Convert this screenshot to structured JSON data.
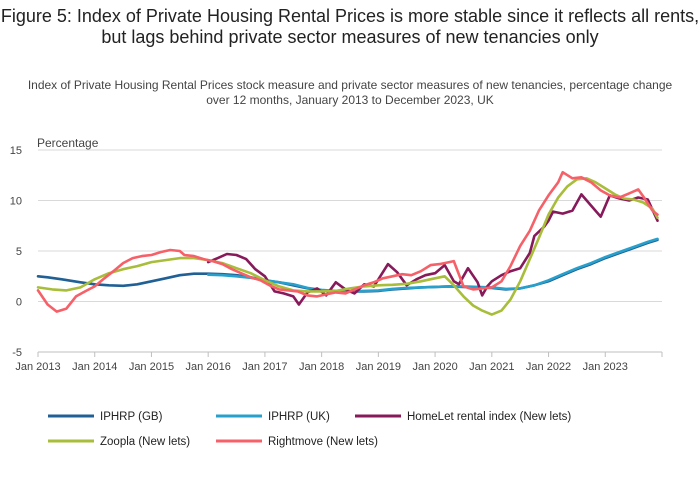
{
  "title": "Figure 5: Index of Private Housing Rental Prices is more stable since it reflects all rents, but lags behind private sector measures of new tenancies only",
  "subtitle": "Index of Private Housing Rental Prices stock measure and private sector measures of new tenancies, percentage change over 12 months, January 2013 to December 2023, UK",
  "chart_data": {
    "type": "line",
    "ylabel": "Percentage",
    "xlabel": "",
    "ylim": [
      -5,
      15
    ],
    "yticks": [
      15,
      10,
      5,
      0,
      -5
    ],
    "xticks": [
      "Jan 2013",
      "Jan 2014",
      "Jan 2015",
      "Jan 2016",
      "Jan 2017",
      "Jan 2018",
      "Jan 2019",
      "Jan 2020",
      "Jan 2021",
      "Jan 2022",
      "Jan 2023"
    ],
    "x_range": [
      2013.0,
      2024.0
    ],
    "grid": "horizontal",
    "legend_position": "bottom",
    "series": [
      {
        "name": "IPHRP (GB)",
        "color": "#206095",
        "points": [
          [
            2013.0,
            2.5
          ],
          [
            2013.17,
            2.4
          ],
          [
            2013.42,
            2.2
          ],
          [
            2013.75,
            1.9
          ],
          [
            2014.0,
            1.7
          ],
          [
            2014.25,
            1.6
          ],
          [
            2014.5,
            1.55
          ],
          [
            2014.75,
            1.7
          ],
          [
            2015.0,
            2.0
          ],
          [
            2015.25,
            2.3
          ],
          [
            2015.5,
            2.6
          ],
          [
            2015.75,
            2.75
          ],
          [
            2016.0,
            2.75
          ],
          [
            2016.25,
            2.7
          ],
          [
            2016.5,
            2.6
          ],
          [
            2016.75,
            2.4
          ],
          [
            2017.0,
            2.1
          ],
          [
            2017.25,
            1.9
          ],
          [
            2017.5,
            1.6
          ],
          [
            2017.75,
            1.3
          ],
          [
            2018.0,
            1.1
          ],
          [
            2018.25,
            1.0
          ],
          [
            2018.5,
            0.98
          ],
          [
            2018.75,
            1.0
          ],
          [
            2019.0,
            1.05
          ],
          [
            2019.25,
            1.2
          ],
          [
            2019.5,
            1.3
          ],
          [
            2019.75,
            1.4
          ],
          [
            2020.0,
            1.45
          ],
          [
            2020.25,
            1.5
          ],
          [
            2020.5,
            1.45
          ],
          [
            2020.75,
            1.4
          ],
          [
            2021.0,
            1.35
          ],
          [
            2021.25,
            1.2
          ],
          [
            2021.5,
            1.3
          ],
          [
            2021.75,
            1.6
          ],
          [
            2022.0,
            2.0
          ],
          [
            2022.25,
            2.6
          ],
          [
            2022.5,
            3.2
          ],
          [
            2022.75,
            3.7
          ],
          [
            2023.0,
            4.3
          ],
          [
            2023.25,
            4.8
          ],
          [
            2023.5,
            5.3
          ],
          [
            2023.75,
            5.8
          ],
          [
            2023.92,
            6.1
          ]
        ]
      },
      {
        "name": "IPHRP (UK)",
        "color": "#27a0cc",
        "points": [
          [
            2016.0,
            2.65
          ],
          [
            2016.25,
            2.6
          ],
          [
            2016.5,
            2.5
          ],
          [
            2016.75,
            2.35
          ],
          [
            2017.0,
            2.1
          ],
          [
            2017.25,
            1.9
          ],
          [
            2017.5,
            1.7
          ],
          [
            2017.75,
            1.35
          ],
          [
            2018.0,
            1.15
          ],
          [
            2018.25,
            1.05
          ],
          [
            2018.5,
            1.0
          ],
          [
            2018.75,
            1.05
          ],
          [
            2019.0,
            1.1
          ],
          [
            2019.25,
            1.25
          ],
          [
            2019.5,
            1.35
          ],
          [
            2019.75,
            1.4
          ],
          [
            2020.0,
            1.45
          ],
          [
            2020.25,
            1.5
          ],
          [
            2020.5,
            1.5
          ],
          [
            2020.75,
            1.45
          ],
          [
            2021.0,
            1.4
          ],
          [
            2021.25,
            1.25
          ],
          [
            2021.5,
            1.3
          ],
          [
            2021.75,
            1.6
          ],
          [
            2022.0,
            2.1
          ],
          [
            2022.25,
            2.7
          ],
          [
            2022.5,
            3.3
          ],
          [
            2022.75,
            3.8
          ],
          [
            2023.0,
            4.4
          ],
          [
            2023.25,
            4.9
          ],
          [
            2023.5,
            5.4
          ],
          [
            2023.75,
            5.9
          ],
          [
            2023.92,
            6.2
          ]
        ]
      },
      {
        "name": "HomeLet rental index (New lets)",
        "color": "#871a5b",
        "points": [
          [
            2016.0,
            3.9
          ],
          [
            2016.17,
            4.3
          ],
          [
            2016.33,
            4.7
          ],
          [
            2016.5,
            4.6
          ],
          [
            2016.67,
            4.2
          ],
          [
            2016.83,
            3.2
          ],
          [
            2017.0,
            2.5
          ],
          [
            2017.17,
            1.0
          ],
          [
            2017.33,
            0.8
          ],
          [
            2017.5,
            0.5
          ],
          [
            2017.6,
            -0.3
          ],
          [
            2017.75,
            0.9
          ],
          [
            2017.92,
            1.3
          ],
          [
            2018.08,
            0.6
          ],
          [
            2018.25,
            1.9
          ],
          [
            2018.42,
            1.2
          ],
          [
            2018.58,
            0.8
          ],
          [
            2018.75,
            1.7
          ],
          [
            2018.92,
            1.5
          ],
          [
            2019.0,
            2.2
          ],
          [
            2019.17,
            3.7
          ],
          [
            2019.33,
            2.9
          ],
          [
            2019.5,
            1.6
          ],
          [
            2019.67,
            2.2
          ],
          [
            2019.83,
            2.6
          ],
          [
            2020.0,
            2.8
          ],
          [
            2020.17,
            3.6
          ],
          [
            2020.33,
            2.0
          ],
          [
            2020.42,
            1.7
          ],
          [
            2020.58,
            3.3
          ],
          [
            2020.75,
            1.9
          ],
          [
            2020.83,
            0.6
          ],
          [
            2020.92,
            1.5
          ],
          [
            2021.0,
            2.0
          ],
          [
            2021.17,
            2.6
          ],
          [
            2021.33,
            3.0
          ],
          [
            2021.5,
            3.3
          ],
          [
            2021.67,
            4.8
          ],
          [
            2021.75,
            6.5
          ],
          [
            2021.92,
            7.4
          ],
          [
            2022.0,
            8.0
          ],
          [
            2022.08,
            8.9
          ],
          [
            2022.25,
            8.7
          ],
          [
            2022.42,
            9.0
          ],
          [
            2022.58,
            10.6
          ],
          [
            2022.75,
            9.5
          ],
          [
            2022.92,
            8.4
          ],
          [
            2023.08,
            10.5
          ],
          [
            2023.25,
            10.2
          ],
          [
            2023.42,
            10.0
          ],
          [
            2023.58,
            10.3
          ],
          [
            2023.75,
            10.1
          ],
          [
            2023.92,
            8.0
          ]
        ]
      },
      {
        "name": "Zoopla (New lets)",
        "color": "#a8bd3a",
        "points": [
          [
            2013.0,
            1.4
          ],
          [
            2013.25,
            1.2
          ],
          [
            2013.5,
            1.1
          ],
          [
            2013.75,
            1.4
          ],
          [
            2014.0,
            2.2
          ],
          [
            2014.25,
            2.8
          ],
          [
            2014.5,
            3.2
          ],
          [
            2014.75,
            3.5
          ],
          [
            2015.0,
            3.9
          ],
          [
            2015.25,
            4.1
          ],
          [
            2015.5,
            4.3
          ],
          [
            2015.75,
            4.3
          ],
          [
            2016.0,
            4.1
          ],
          [
            2016.25,
            3.8
          ],
          [
            2016.5,
            3.3
          ],
          [
            2016.75,
            2.8
          ],
          [
            2017.0,
            2.1
          ],
          [
            2017.25,
            1.5
          ],
          [
            2017.5,
            1.1
          ],
          [
            2017.75,
            1.0
          ],
          [
            2018.0,
            1.0
          ],
          [
            2018.25,
            1.05
          ],
          [
            2018.5,
            1.3
          ],
          [
            2018.75,
            1.5
          ],
          [
            2019.0,
            1.6
          ],
          [
            2019.25,
            1.65
          ],
          [
            2019.5,
            1.75
          ],
          [
            2019.75,
            2.0
          ],
          [
            2020.0,
            2.3
          ],
          [
            2020.17,
            2.5
          ],
          [
            2020.33,
            1.6
          ],
          [
            2020.5,
            0.5
          ],
          [
            2020.67,
            -0.4
          ],
          [
            2020.83,
            -0.9
          ],
          [
            2021.0,
            -1.3
          ],
          [
            2021.17,
            -0.9
          ],
          [
            2021.33,
            0.2
          ],
          [
            2021.5,
            2.0
          ],
          [
            2021.67,
            4.2
          ],
          [
            2021.83,
            6.3
          ],
          [
            2022.0,
            8.6
          ],
          [
            2022.17,
            10.3
          ],
          [
            2022.33,
            11.4
          ],
          [
            2022.5,
            12.1
          ],
          [
            2022.67,
            12.2
          ],
          [
            2022.83,
            11.8
          ],
          [
            2023.0,
            11.2
          ],
          [
            2023.17,
            10.6
          ],
          [
            2023.33,
            10.2
          ],
          [
            2023.5,
            10.1
          ],
          [
            2023.67,
            9.8
          ],
          [
            2023.83,
            9.2
          ],
          [
            2023.92,
            8.3
          ]
        ]
      },
      {
        "name": "Rightmove (New lets)",
        "color": "#f66068",
        "points": [
          [
            2013.0,
            1.1
          ],
          [
            2013.17,
            -0.3
          ],
          [
            2013.33,
            -1.0
          ],
          [
            2013.5,
            -0.7
          ],
          [
            2013.67,
            0.5
          ],
          [
            2013.83,
            1.0
          ],
          [
            2014.0,
            1.5
          ],
          [
            2014.17,
            2.3
          ],
          [
            2014.33,
            3.0
          ],
          [
            2014.5,
            3.8
          ],
          [
            2014.67,
            4.3
          ],
          [
            2014.83,
            4.5
          ],
          [
            2015.0,
            4.6
          ],
          [
            2015.17,
            4.9
          ],
          [
            2015.33,
            5.1
          ],
          [
            2015.5,
            5.0
          ],
          [
            2015.58,
            4.6
          ],
          [
            2015.75,
            4.5
          ],
          [
            2015.92,
            4.2
          ],
          [
            2016.08,
            4.0
          ],
          [
            2016.25,
            3.7
          ],
          [
            2016.42,
            3.2
          ],
          [
            2016.58,
            2.8
          ],
          [
            2016.75,
            2.4
          ],
          [
            2016.92,
            2.1
          ],
          [
            2017.08,
            1.6
          ],
          [
            2017.25,
            1.2
          ],
          [
            2017.42,
            1.1
          ],
          [
            2017.58,
            1.0
          ],
          [
            2017.75,
            0.6
          ],
          [
            2017.92,
            0.5
          ],
          [
            2018.08,
            0.7
          ],
          [
            2018.25,
            0.9
          ],
          [
            2018.42,
            0.8
          ],
          [
            2018.58,
            1.2
          ],
          [
            2018.75,
            1.6
          ],
          [
            2018.92,
            1.9
          ],
          [
            2019.08,
            2.3
          ],
          [
            2019.25,
            2.5
          ],
          [
            2019.42,
            2.7
          ],
          [
            2019.58,
            2.6
          ],
          [
            2019.75,
            3.0
          ],
          [
            2019.92,
            3.6
          ],
          [
            2020.08,
            3.7
          ],
          [
            2020.25,
            3.9
          ],
          [
            2020.33,
            4.0
          ],
          [
            2020.5,
            1.5
          ],
          [
            2020.67,
            1.2
          ],
          [
            2020.83,
            1.3
          ],
          [
            2021.0,
            1.4
          ],
          [
            2021.17,
            2.0
          ],
          [
            2021.33,
            3.5
          ],
          [
            2021.5,
            5.5
          ],
          [
            2021.67,
            7.0
          ],
          [
            2021.83,
            9.0
          ],
          [
            2022.0,
            10.5
          ],
          [
            2022.17,
            11.8
          ],
          [
            2022.25,
            12.8
          ],
          [
            2022.42,
            12.2
          ],
          [
            2022.58,
            12.3
          ],
          [
            2022.75,
            11.8
          ],
          [
            2022.92,
            11.0
          ],
          [
            2023.08,
            10.5
          ],
          [
            2023.25,
            10.3
          ],
          [
            2023.42,
            10.7
          ],
          [
            2023.58,
            11.1
          ],
          [
            2023.67,
            10.4
          ],
          [
            2023.83,
            9.0
          ],
          [
            2023.92,
            8.6
          ]
        ]
      }
    ]
  }
}
